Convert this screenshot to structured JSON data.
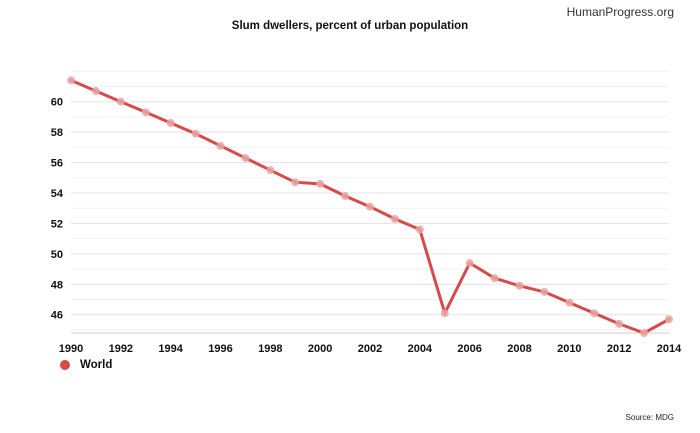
{
  "brand": "HumanProgress.org",
  "source": "Source: MDG",
  "colors": {
    "line": "#d54b4b",
    "marker": "#eaa3a3",
    "grid": "#e3e3e3"
  },
  "chart_data": {
    "type": "line",
    "title": "Slum dwellers, percent of urban population",
    "xlabel": "",
    "ylabel": "",
    "x": [
      1990,
      1991,
      1992,
      1993,
      1994,
      1995,
      1996,
      1997,
      1998,
      1999,
      2000,
      2001,
      2002,
      2003,
      2004,
      2005,
      2006,
      2007,
      2008,
      2009,
      2010,
      2011,
      2012,
      2013,
      2014
    ],
    "series": [
      {
        "name": "World",
        "values": [
          61.4,
          60.7,
          60.0,
          59.3,
          58.6,
          57.9,
          57.1,
          56.3,
          55.5,
          54.7,
          54.6,
          53.8,
          53.1,
          52.3,
          51.6,
          46.1,
          49.4,
          48.4,
          47.9,
          47.5,
          46.8,
          46.1,
          45.4,
          44.8,
          45.7
        ]
      }
    ],
    "xticks": [
      1990,
      1992,
      1994,
      1996,
      1998,
      2000,
      2002,
      2004,
      2006,
      2008,
      2010,
      2012,
      2014
    ],
    "yticks": [
      46,
      48,
      50,
      52,
      54,
      56,
      58,
      60
    ],
    "xlim": [
      1990,
      2014
    ],
    "ylim": [
      44.8,
      63.2
    ],
    "legend_position": "bottom-left"
  }
}
